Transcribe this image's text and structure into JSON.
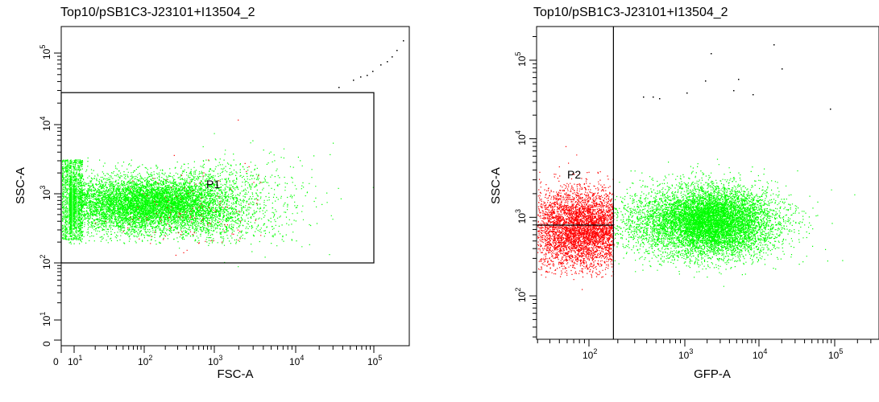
{
  "chart_data": [
    {
      "id": "left",
      "type": "scatter",
      "title": "Top10/pSB1C3-J23101+I13504_2",
      "xlabel": "FSC-A",
      "ylabel": "SSC-A",
      "x_scale": "biexponential",
      "y_scale": "biexponential",
      "xlim": [
        0,
        300000
      ],
      "ylim": [
        0,
        300000
      ],
      "x_ticks": [
        {
          "label": "0",
          "exp": ""
        },
        {
          "label": "10",
          "exp": "1"
        },
        {
          "label": "10",
          "exp": "2"
        },
        {
          "label": "10",
          "exp": "3"
        },
        {
          "label": "10",
          "exp": "4"
        },
        {
          "label": "10",
          "exp": "5"
        }
      ],
      "y_ticks": [
        {
          "label": "0",
          "exp": ""
        },
        {
          "label": "10",
          "exp": "1"
        },
        {
          "label": "10",
          "exp": "2"
        },
        {
          "label": "10",
          "exp": "3"
        },
        {
          "label": "10",
          "exp": "4"
        },
        {
          "label": "10",
          "exp": "5"
        }
      ],
      "gates": [
        {
          "name": "P1",
          "type": "rectangle",
          "x_range": [
            0,
            100000
          ],
          "y_range": [
            100,
            28000
          ]
        }
      ],
      "populations": [
        {
          "color": "#00ff00",
          "x_log_center": 2.1,
          "x_log_spread": 0.75,
          "y_log_center": 2.85,
          "y_log_spread": 0.22,
          "count": 9000
        },
        {
          "color": "#ff0000",
          "x_log_center": 2.7,
          "x_log_spread": 0.6,
          "y_log_center": 2.7,
          "y_log_spread": 0.35,
          "count": 140
        }
      ],
      "colors": {
        "gated": "#00ff00",
        "ungated": "#ff0000",
        "outliers": "#000000"
      }
    },
    {
      "id": "right",
      "type": "scatter",
      "title": "Top10/pSB1C3-J23101+I13504_2",
      "xlabel": "GFP-A",
      "ylabel": "SSC-A",
      "x_scale": "log",
      "y_scale": "log",
      "xlim": [
        30,
        200000
      ],
      "ylim": [
        30,
        300000
      ],
      "x_ticks": [
        {
          "label": "10",
          "exp": "2"
        },
        {
          "label": "10",
          "exp": "3"
        },
        {
          "label": "10",
          "exp": "4"
        },
        {
          "label": "10",
          "exp": "5"
        }
      ],
      "y_ticks": [
        {
          "label": "10",
          "exp": "2"
        },
        {
          "label": "10",
          "exp": "3"
        },
        {
          "label": "10",
          "exp": "4"
        },
        {
          "label": "10",
          "exp": "5"
        }
      ],
      "gates": [
        {
          "name": "P2",
          "type": "vertical_threshold",
          "x_threshold": 180
        }
      ],
      "populations": [
        {
          "color": "#ff0000",
          "x_log_center": 1.95,
          "x_log_spread": 0.28,
          "y_log_center": 2.85,
          "y_log_spread": 0.25,
          "count": 5000
        },
        {
          "color": "#00ff00",
          "x_log_center": 3.3,
          "x_log_spread": 0.45,
          "y_log_center": 2.95,
          "y_log_spread": 0.22,
          "count": 9000
        }
      ],
      "colors": {
        "below_gate": "#ff0000",
        "above_gate": "#00ff00",
        "outliers": "#000000"
      }
    }
  ]
}
